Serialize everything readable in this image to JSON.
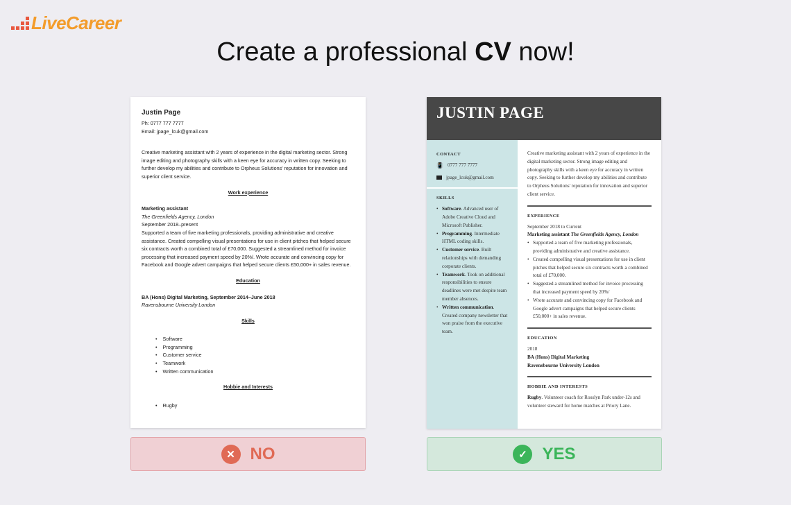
{
  "logo": {
    "text": "LiveCareer",
    "colors": {
      "text": "#f39c2b",
      "dots": "#e8583f"
    }
  },
  "headline": {
    "pre": "Create a professional ",
    "bold": "CV",
    "post": " now!"
  },
  "bad_cv": {
    "name": "Justin Page",
    "phone": "Ph: 0777 777 7777",
    "email": "Email: jpage_lcuk@gmail.com",
    "summary": "Creative marketing assistant with 2 years of experience in the digital marketing sector. Strong image editing and photography skills with a keen eye for accuracy in written copy. Seeking to further develop my abilities and contribute to Orpheus Solutions' reputation for innovation and superior client service.",
    "work_heading": "Work experience",
    "job_title": "Marketing assistant",
    "company": "The Greenfields Agency, London",
    "dates": "September 2018–present",
    "job_desc": "Supported a team of five marketing professionals, providing administrative and creative assistance. Created compelling visual presentations for use in client pitches that helped secure six contracts worth a combined total of £70,000. Suggested a streamlined method for invoice processing that increased payment speed by 20%/. Wrote accurate and convincing copy for Facebook and Google advert campaigns that helped secure clients £50,000+ in sales revenue.",
    "edu_heading": "Education",
    "degree": "BA (Hons) Digital Marketing, September 2014–June 2018",
    "school": "Ravensbourne University London",
    "skills_heading": "Skills",
    "skills": [
      "Software",
      "Programming",
      "Customer service",
      "Teamwork",
      "Written communication"
    ],
    "hobbies_heading": "Hobbie and Interests",
    "hobbies": [
      "Rugby"
    ]
  },
  "good_cv": {
    "name": "JUSTIN PAGE",
    "contact_heading": "CONTACT",
    "phone": "0777 777 7777",
    "email": "jpage_lcuk@gmail.com",
    "skills_heading": "SKILLS",
    "skills": [
      {
        "b": "Software",
        "t": ". Advanced user of Adobe Creative Cloud and Microsoft Publisher."
      },
      {
        "b": "Programming",
        "t": ". Intermediate HTML coding skills."
      },
      {
        "b": "Customer service",
        "t": ". Built relationships with demanding corporate clients."
      },
      {
        "b": "Teamwork",
        "t": ". Took on additional responsibilities to ensure deadlines were met despite team member absences."
      },
      {
        "b": "Written communication",
        "t": ". Created company newsletter that won praise from the executive team."
      }
    ],
    "summary": "Creative marketing assistant with 2 years of experience in the digital marketing sector. Strong image editing and photography skills with a keen eye for accuracy in written copy. Seeking to further develop my abilities and contribute to Orpheus Solutions' reputation for innovation and superior client service.",
    "exp_heading": "EXPERIENCE",
    "dates": "September 2018 to Current",
    "job_title": "Marketing assistant",
    "company": "The Greenfields Agency, London",
    "bullets": [
      "Supported a team of five marketing professionals, providing administrative and creative assistance.",
      "Created compelling visual presentations for use in client pitches that helped secure six contracts worth a combined total of £70,000.",
      "Suggested a streamlined method for invoice processing that increased payment speed by 20%/",
      "Wrote accurate and convincing copy for Facebook and Google advert campaigns that helped secure clients £50,000+ in sales revenue."
    ],
    "edu_heading": "EDUCATION",
    "edu_year": "2018",
    "degree": "BA (Hons) Digital Marketing",
    "school": "Ravensbourne University London",
    "hobbies_heading": "HOBBIE AND INTERESTS",
    "hobby_bold": "Rugby",
    "hobby_text": ". Volunteer coach for Rosslyn Park under-12s and volunteer steward for home matches at Priory Lane.",
    "colors": {
      "header": "#474747",
      "sidebar": "#cce5e6"
    }
  },
  "verdicts": {
    "no": {
      "label": "NO",
      "icon": "x-circle-icon",
      "color": "#e06a55"
    },
    "yes": {
      "label": "YES",
      "icon": "check-circle-icon",
      "color": "#3bb55a"
    }
  }
}
